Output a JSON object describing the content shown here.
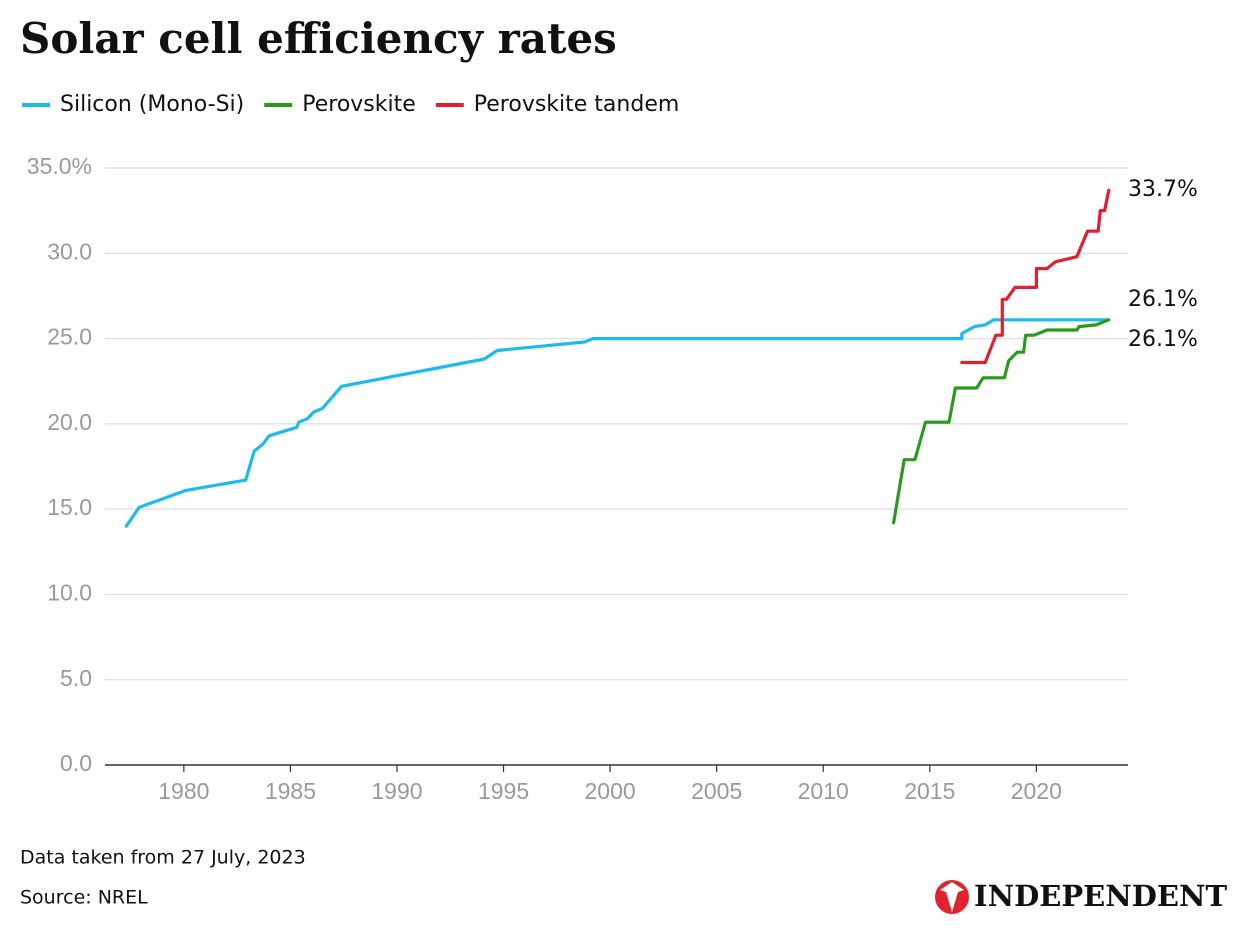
{
  "chart_data": {
    "type": "line",
    "title": "Solar cell efficiency rates",
    "note": "Data taken from 27 July, 2023",
    "source": "Source: NREL",
    "brand": "INDEPENDENT",
    "xlim": [
      1976.3,
      2024.3
    ],
    "xticks": [
      1980,
      1985,
      1990,
      1995,
      2000,
      2005,
      2010,
      2015,
      2020
    ],
    "ylim": [
      0,
      35
    ],
    "yticks": [
      {
        "value": 0,
        "label": "0.0"
      },
      {
        "value": 5,
        "label": "5.0"
      },
      {
        "value": 10,
        "label": "10.0"
      },
      {
        "value": 15,
        "label": "15.0"
      },
      {
        "value": 20,
        "label": "20.0"
      },
      {
        "value": 25,
        "label": "25.0"
      },
      {
        "value": 30,
        "label": "30.0"
      },
      {
        "value": 35,
        "label": "35.0%"
      }
    ],
    "grid": true,
    "legend": "top-left",
    "series": [
      {
        "name": "Silicon (Mono-Si)",
        "color": "#1cbaf0",
        "x": [
          1977.3,
          1977.9,
          1980.1,
          1982.9,
          1983.3,
          1983.7,
          1984.0,
          1985.3,
          1985.4,
          1985.8,
          1986.1,
          1986.5,
          1987.4,
          1994.1,
          1994.7,
          1998.8,
          1999.2,
          2016.5,
          2016.5,
          2017.1,
          2017.6,
          2018.0,
          2023.3
        ],
        "values": [
          14.0,
          15.1,
          16.1,
          16.7,
          18.4,
          18.8,
          19.3,
          19.8,
          20.1,
          20.3,
          20.7,
          20.9,
          22.2,
          23.8,
          24.3,
          24.8,
          25.0,
          25.0,
          25.3,
          25.7,
          25.8,
          26.1,
          26.1
        ],
        "value_labels": [
          null,
          null,
          null,
          null,
          null,
          null,
          null,
          null,
          null,
          null,
          null,
          null,
          null,
          null,
          null,
          null,
          null,
          null,
          null,
          null,
          null,
          null,
          "26.1%"
        ]
      },
      {
        "name": "Perovskite",
        "color": "#2a9a1f",
        "x": [
          2013.3,
          2013.8,
          2014.3,
          2014.8,
          2015.9,
          2016.2,
          2017.2,
          2017.5,
          2018.5,
          2018.7,
          2019.1,
          2019.4,
          2019.5,
          2019.9,
          2020.5,
          2021.9,
          2022.0,
          2022.8,
          2023.4
        ],
        "values": [
          14.2,
          17.9,
          17.9,
          20.1,
          20.1,
          22.1,
          22.1,
          22.7,
          22.7,
          23.7,
          24.2,
          24.2,
          25.2,
          25.2,
          25.5,
          25.5,
          25.7,
          25.8,
          26.1
        ],
        "value_labels": [
          null,
          null,
          null,
          null,
          null,
          null,
          null,
          null,
          null,
          null,
          null,
          null,
          null,
          null,
          null,
          null,
          null,
          null,
          "26.1%"
        ]
      },
      {
        "name": "Perovskite tandem",
        "color": "#e01f2f",
        "x": [
          2016.5,
          2017.6,
          2018.1,
          2018.4,
          2018.4,
          2018.6,
          2019.0,
          2020.0,
          2020.0,
          2020.5,
          2020.9,
          2021.9,
          2022.4,
          2022.9,
          2023.0,
          2023.2,
          2023.4
        ],
        "values": [
          23.6,
          23.6,
          25.2,
          25.2,
          27.3,
          27.3,
          28.0,
          28.0,
          29.1,
          29.1,
          29.5,
          29.8,
          31.3,
          31.3,
          32.5,
          32.5,
          33.7
        ],
        "value_labels": [
          null,
          null,
          null,
          null,
          null,
          null,
          null,
          null,
          null,
          null,
          null,
          null,
          null,
          null,
          null,
          null,
          "33.7%"
        ]
      }
    ]
  }
}
